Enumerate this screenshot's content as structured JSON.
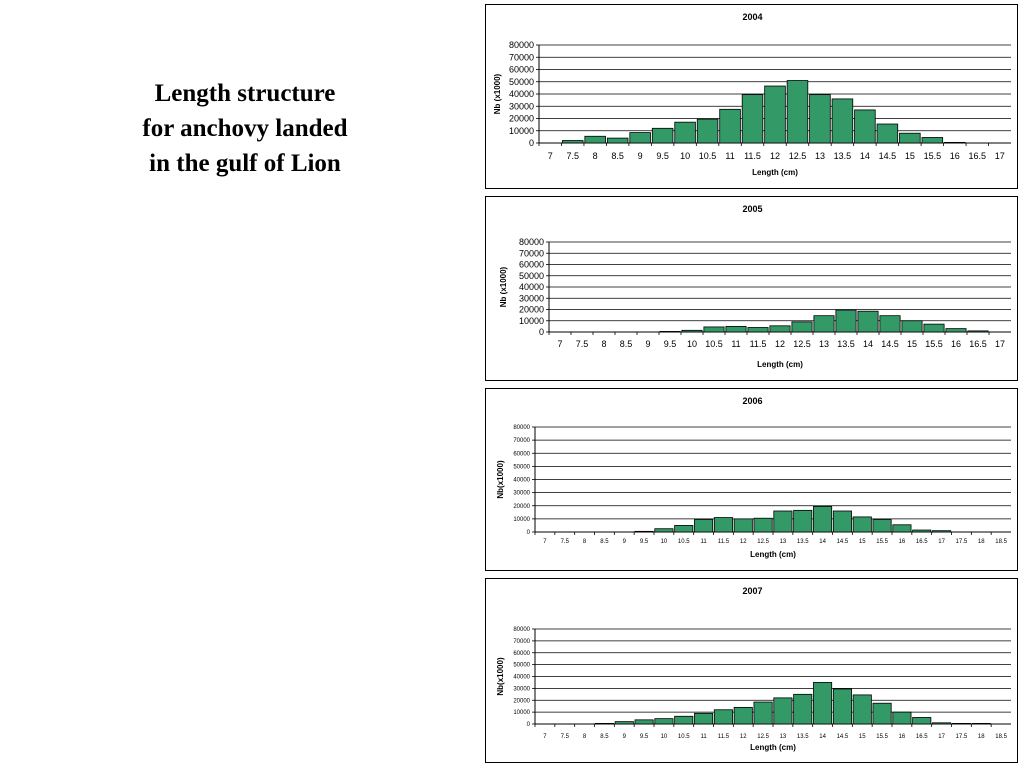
{
  "slide": {
    "title_lines": [
      "Length structure",
      "for anchovy landed",
      "in the gulf of Lion"
    ]
  },
  "colors": {
    "bar_fill": "#339966",
    "bar_stroke": "#000000",
    "grid": "#000000"
  },
  "chart_data": [
    {
      "type": "bar",
      "title": "2004",
      "xlabel": "Length (cm)",
      "ylabel": "Nb (x1000)",
      "ylim": [
        0,
        80000
      ],
      "yticks": [
        0,
        10000,
        20000,
        30000,
        40000,
        50000,
        60000,
        70000,
        80000
      ],
      "grid": true,
      "legend": "none",
      "categories": [
        "7",
        "7.5",
        "8",
        "8.5",
        "9",
        "9.5",
        "10",
        "10.5",
        "11",
        "11.5",
        "12",
        "12.5",
        "13",
        "13.5",
        "14",
        "14.5",
        "15",
        "15.5",
        "16",
        "16.5",
        "17"
      ],
      "values": [
        0,
        2000,
        5500,
        4000,
        8500,
        12000,
        17000,
        19500,
        27500,
        39500,
        46500,
        51000,
        39500,
        36000,
        27000,
        15500,
        8000,
        4500,
        500,
        0,
        0
      ]
    },
    {
      "type": "bar",
      "title": "2005",
      "xlabel": "Length  (cm)",
      "ylabel": "Nb (x1000)",
      "ylim": [
        0,
        80000
      ],
      "yticks": [
        0,
        10000,
        20000,
        30000,
        40000,
        50000,
        60000,
        70000,
        80000
      ],
      "grid": true,
      "legend": "none",
      "categories": [
        "7",
        "7.5",
        "8",
        "8.5",
        "9",
        "9.5",
        "10",
        "10.5",
        "11",
        "11.5",
        "12",
        "12.5",
        "13",
        "13.5",
        "14",
        "14.5",
        "15",
        "15.5",
        "16",
        "16.5",
        "17"
      ],
      "values": [
        0,
        0,
        0,
        0,
        0,
        500,
        1500,
        4500,
        5000,
        4000,
        5500,
        9000,
        14500,
        19500,
        18500,
        14500,
        10000,
        7000,
        3000,
        1000,
        0
      ]
    },
    {
      "type": "bar",
      "title": "2006",
      "xlabel": "Length  (cm)",
      "ylabel": "Nb(x1000)",
      "ylim": [
        0,
        80000
      ],
      "yticks": [
        0,
        10000,
        20000,
        30000,
        40000,
        50000,
        60000,
        70000,
        80000
      ],
      "grid": true,
      "legend": "none",
      "categories": [
        "7",
        "7.5",
        "8",
        "8.5",
        "9",
        "9.5",
        "10",
        "10.5",
        "11",
        "11.5",
        "12",
        "12.5",
        "13",
        "13.5",
        "14",
        "14.5",
        "15",
        "15.5",
        "16",
        "16.5",
        "17",
        "17.5",
        "18",
        "18.5"
      ],
      "values": [
        0,
        0,
        0,
        0,
        0,
        500,
        2500,
        5000,
        9500,
        11000,
        10000,
        10500,
        16000,
        16500,
        19500,
        16000,
        11500,
        9500,
        5500,
        1500,
        1000,
        0,
        0,
        0
      ]
    },
    {
      "type": "bar",
      "title": "2007",
      "xlabel": "Length  (cm)",
      "ylabel": "Nb(x1000)",
      "ylim": [
        0,
        80000
      ],
      "yticks": [
        0,
        10000,
        20000,
        30000,
        40000,
        50000,
        60000,
        70000,
        80000
      ],
      "grid": true,
      "legend": "none",
      "categories": [
        "7",
        "7.5",
        "8",
        "8.5",
        "9",
        "9.5",
        "10",
        "10.5",
        "11",
        "11.5",
        "12",
        "12.5",
        "13",
        "13.5",
        "14",
        "14.5",
        "15",
        "15.5",
        "16",
        "16.5",
        "17",
        "17.5",
        "18",
        "18.5"
      ],
      "values": [
        0,
        0,
        0,
        500,
        2000,
        3500,
        4500,
        6500,
        9000,
        12000,
        14000,
        18500,
        22000,
        25000,
        35000,
        29500,
        24500,
        17500,
        10000,
        5500,
        1000,
        500,
        500,
        0
      ]
    }
  ]
}
